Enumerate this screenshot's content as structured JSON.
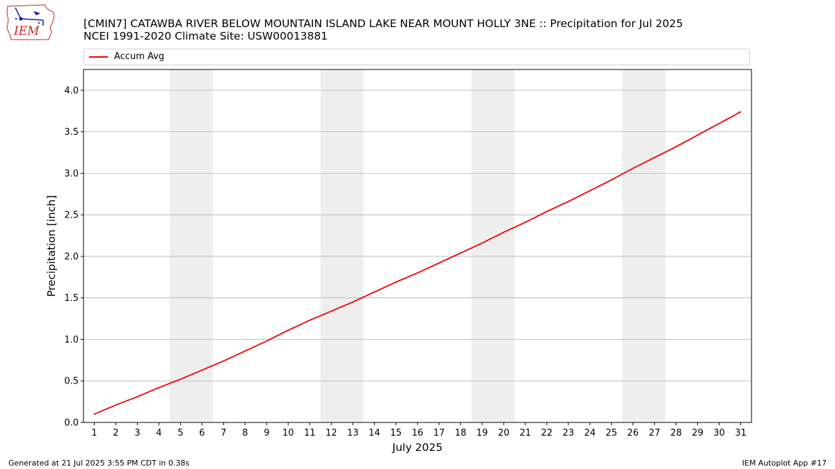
{
  "header": {
    "title_line1": "[CMIN7] CATAWBA RIVER BELOW MOUNTAIN ISLAND LAKE NEAR MOUNT HOLLY 3NE :: Precipitation for Jul 2025",
    "title_line2": "NCEI 1991-2020 Climate Site: USW00013881"
  },
  "logo": {
    "text": "IEM"
  },
  "footer": {
    "generated": "Generated at 21 Jul 2025 3:55 PM CDT in 0.38s",
    "app": "IEM Autoplot App #17"
  },
  "colors": {
    "series": "#ee0000",
    "weekend_band": "#eeeeee",
    "grid": "#b0b0b0",
    "logo": "#cc2222"
  },
  "chart_data": {
    "type": "line",
    "xlabel": "July 2025",
    "ylabel": "Precipitation [inch]",
    "xlim": [
      0.5,
      31.5
    ],
    "ylim": [
      0,
      4.25
    ],
    "y_ticks": [
      0.0,
      0.5,
      1.0,
      1.5,
      2.0,
      2.5,
      3.0,
      3.5,
      4.0
    ],
    "y_tick_labels": [
      "0.0",
      "0.5",
      "1.0",
      "1.5",
      "2.0",
      "2.5",
      "3.0",
      "3.5",
      "4.0"
    ],
    "x_ticks": [
      1,
      2,
      3,
      4,
      5,
      6,
      7,
      8,
      9,
      10,
      11,
      12,
      13,
      14,
      15,
      16,
      17,
      18,
      19,
      20,
      21,
      22,
      23,
      24,
      25,
      26,
      27,
      28,
      29,
      30,
      31
    ],
    "x_tick_labels": [
      "1",
      "2",
      "3",
      "4",
      "5",
      "6",
      "7",
      "8",
      "9",
      "10",
      "11",
      "12",
      "13",
      "14",
      "15",
      "16",
      "17",
      "18",
      "19",
      "20",
      "21",
      "22",
      "23",
      "24",
      "25",
      "26",
      "27",
      "28",
      "29",
      "30",
      "31"
    ],
    "grid": "y",
    "legend": "top",
    "weekend_bands": [
      [
        4.5,
        6.5
      ],
      [
        11.5,
        13.5
      ],
      [
        18.5,
        20.5
      ],
      [
        25.5,
        27.5
      ]
    ],
    "series": [
      {
        "name": "Accum Avg",
        "x": [
          1,
          2,
          3,
          4,
          5,
          6,
          7,
          8,
          9,
          10,
          11,
          12,
          13,
          14,
          15,
          16,
          17,
          18,
          19,
          20,
          21,
          22,
          23,
          24,
          25,
          26,
          27,
          28,
          29,
          30,
          31
        ],
        "values": [
          0.1,
          0.21,
          0.31,
          0.42,
          0.52,
          0.63,
          0.74,
          0.86,
          0.98,
          1.11,
          1.23,
          1.34,
          1.45,
          1.57,
          1.69,
          1.8,
          1.92,
          2.04,
          2.16,
          2.29,
          2.41,
          2.54,
          2.66,
          2.79,
          2.92,
          3.06,
          3.19,
          3.32,
          3.46,
          3.6,
          3.74
        ]
      }
    ]
  }
}
